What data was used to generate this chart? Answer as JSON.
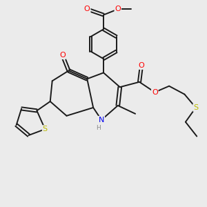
{
  "background_color": "#ebebeb",
  "bond_color": "#1a1a1a",
  "bond_width": 1.4,
  "atom_colors": {
    "O": "#ff0000",
    "N": "#0000ee",
    "S": "#bbbb00",
    "C": "#1a1a1a"
  },
  "figsize": [
    3.0,
    3.0
  ],
  "dpi": 100,
  "xlim": [
    0,
    10
  ],
  "ylim": [
    0,
    10
  ]
}
